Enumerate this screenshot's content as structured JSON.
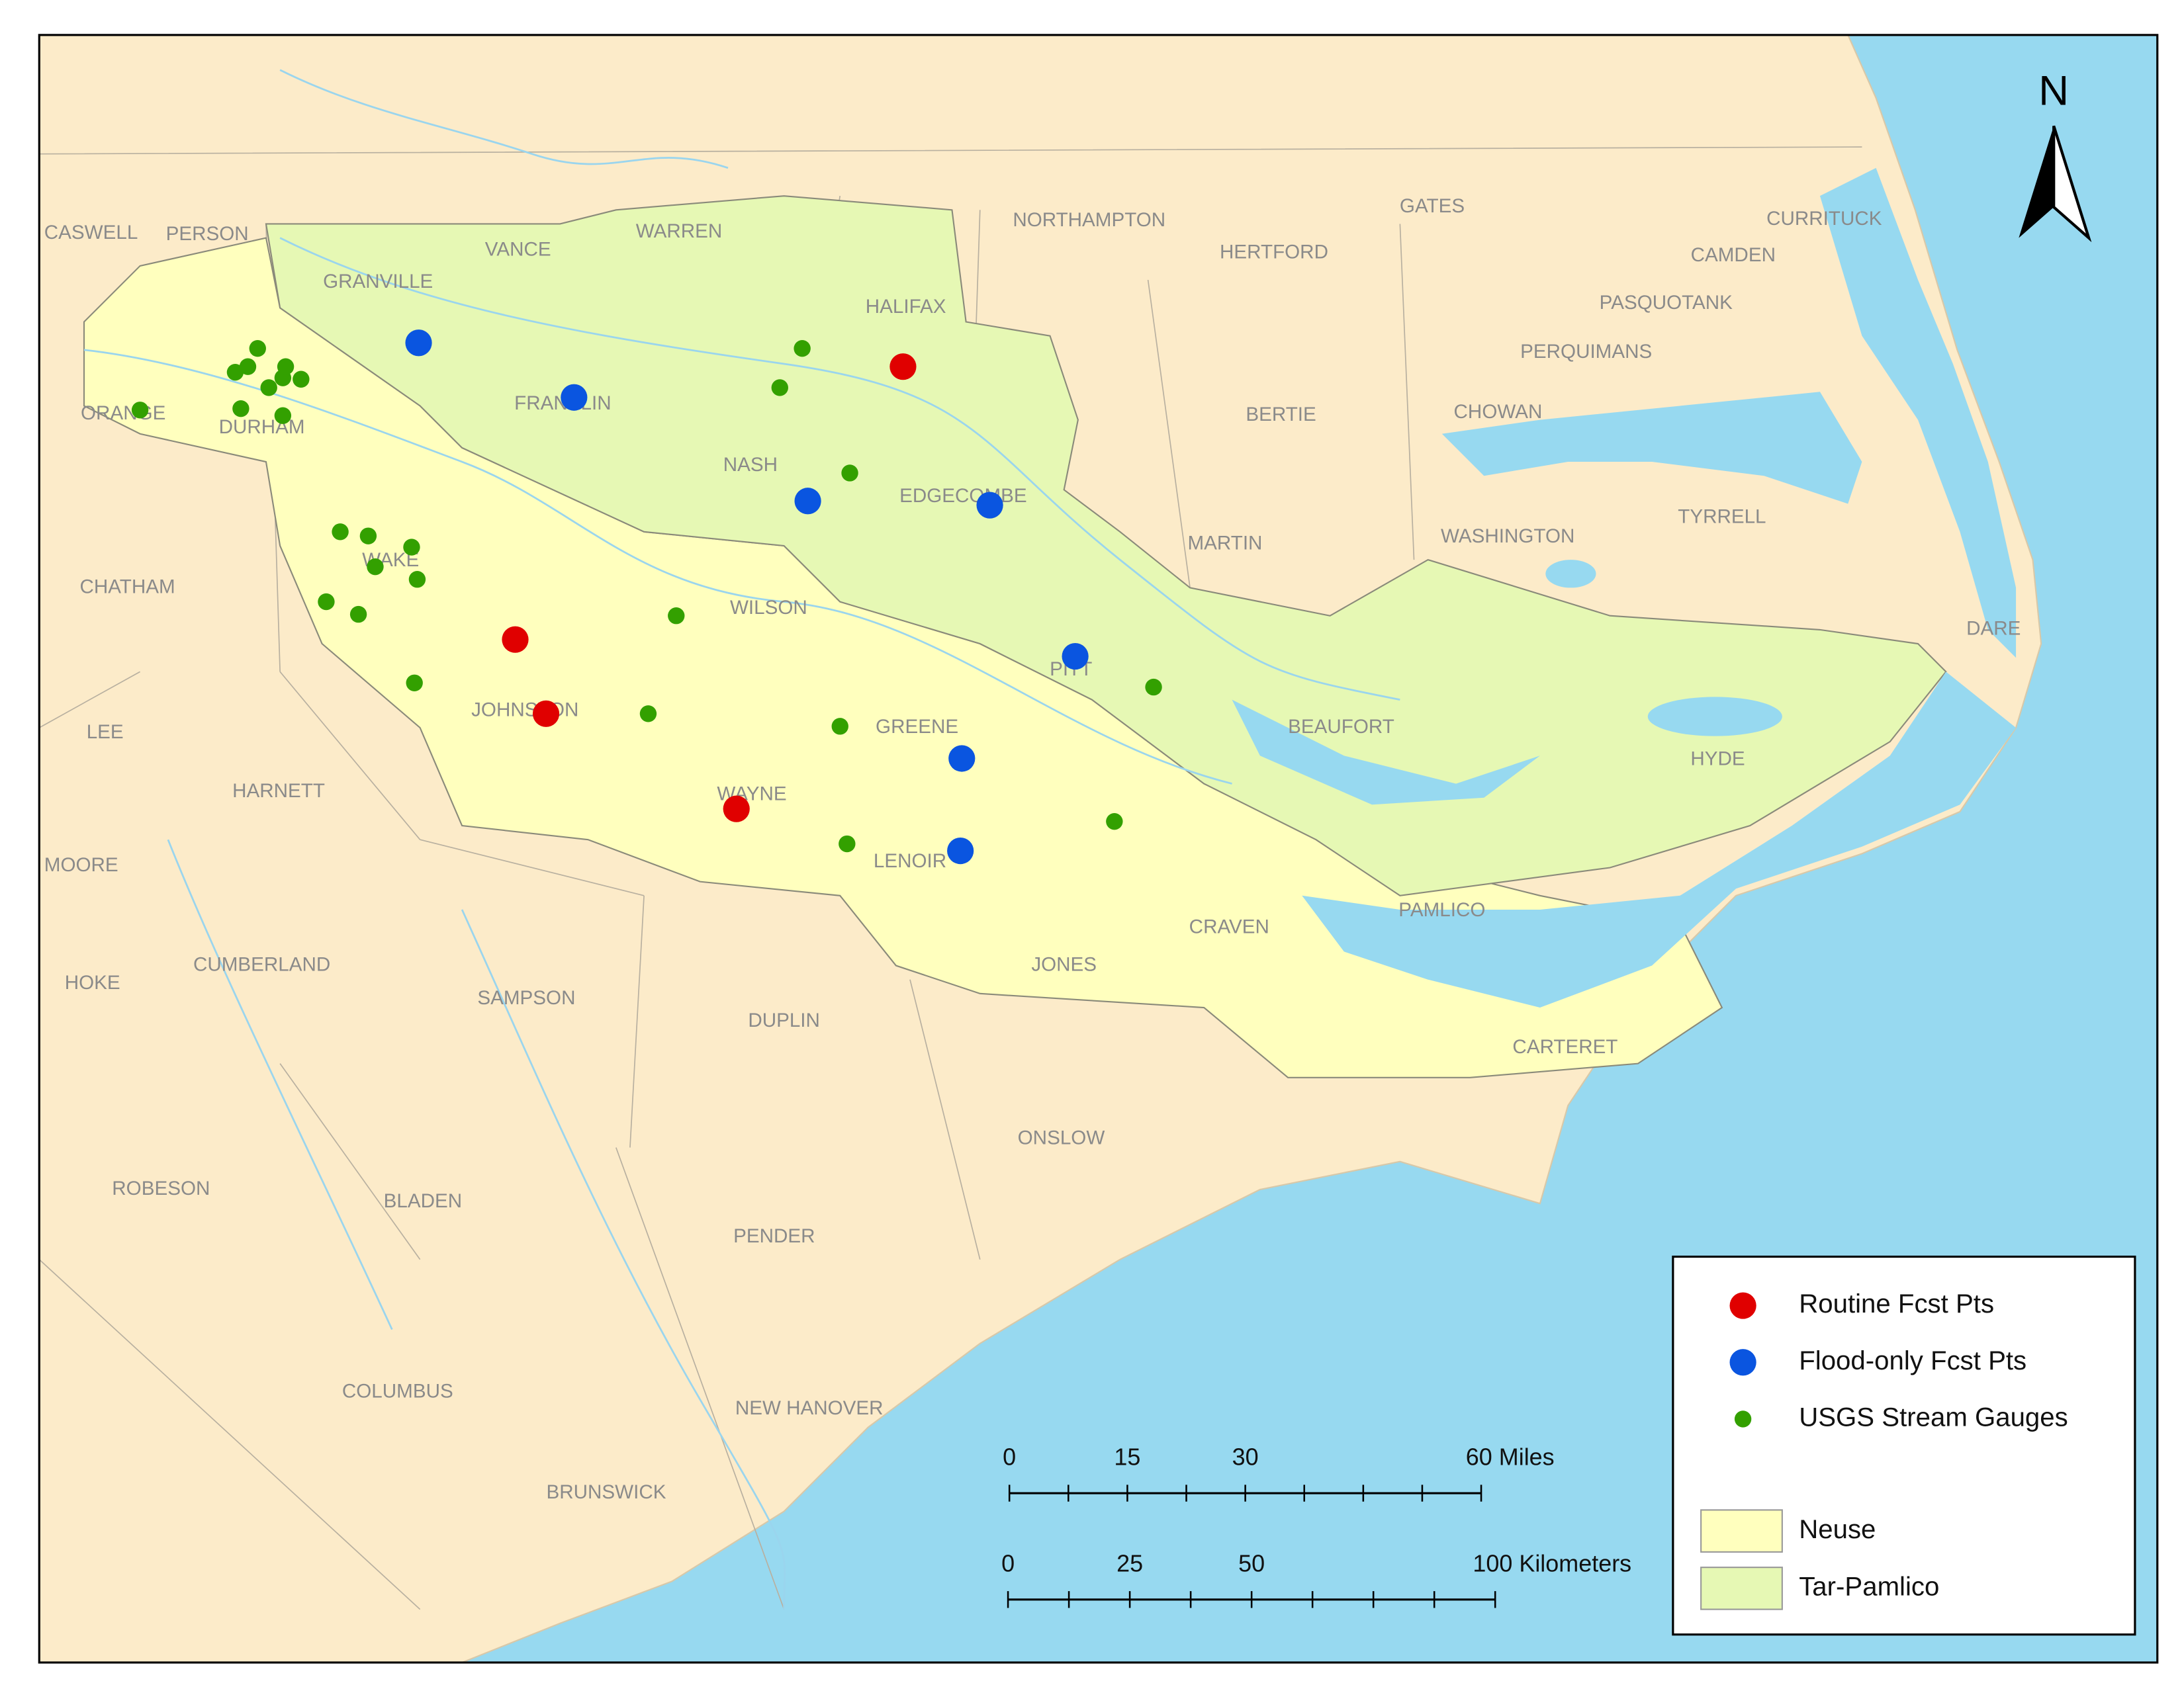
{
  "north_label": "N",
  "counties": [
    "CASWELL",
    "PERSON",
    "VANCE",
    "WARREN",
    "NORTHAMPTON",
    "GATES",
    "CURRITUCK",
    "GRANVILLE",
    "HERTFORD",
    "CAMDEN",
    "HALIFAX",
    "PASQUOTANK",
    "PERQUIMANS",
    "FRANKLIN",
    "ORANGE",
    "DURHAM",
    "BERTIE",
    "CHOWAN",
    "NASH",
    "EDGECOMBE",
    "MARTIN",
    "WASHINGTON",
    "TYRRELL",
    "WAKE",
    "CHATHAM",
    "WILSON",
    "DARE",
    "PITT",
    "BEAUFORT",
    "JOHNSTON",
    "GREENE",
    "LEE",
    "HYDE",
    "HARNETT",
    "WAYNE",
    "MOORE",
    "LENOIR",
    "PAMLICO",
    "CRAVEN",
    "CUMBERLAND",
    "JONES",
    "HOKE",
    "SAMPSON",
    "DUPLIN",
    "CARTERET",
    "ONSLOW",
    "ROBESON",
    "BLADEN",
    "PENDER",
    "COLUMBUS",
    "NEW HANOVER",
    "BRUNSWICK"
  ],
  "legend": {
    "points": [
      {
        "label": "Routine Fcst Pts",
        "color": "#e00000"
      },
      {
        "label": "Flood-only Fcst Pts",
        "color": "#0a55e0"
      },
      {
        "label": "USGS Stream Gauges",
        "color": "#33a000"
      }
    ],
    "basins": [
      {
        "label": "Neuse",
        "color": "#ffffbe"
      },
      {
        "label": "Tar-Pamlico",
        "color": "#e6f8b4"
      }
    ]
  },
  "scale_bars": {
    "miles": {
      "ticks": [
        "0",
        "15",
        "30"
      ],
      "end_label": "60 Miles"
    },
    "kilometers": {
      "ticks": [
        "0",
        "25",
        "50"
      ],
      "end_label": "100 Kilometers"
    }
  }
}
